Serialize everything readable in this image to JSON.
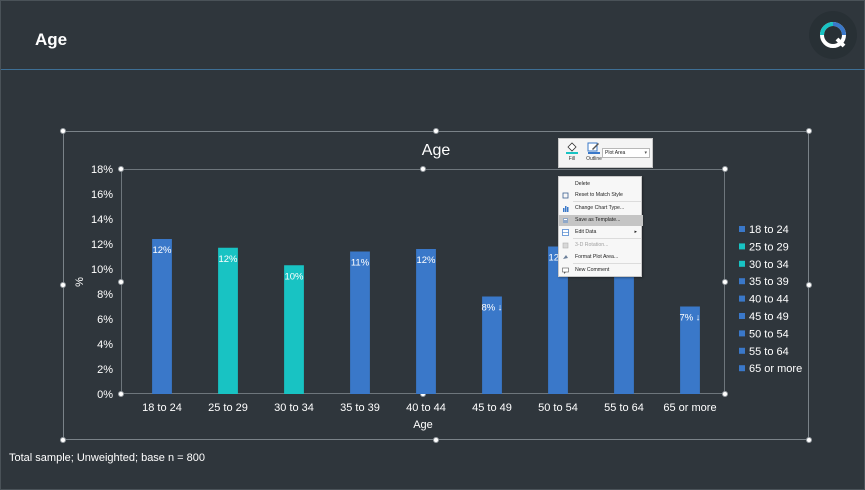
{
  "header": {
    "title": "Age",
    "logo_icon": "product-logo-icon"
  },
  "footnote": "Total sample; Unweighted; base n = 800",
  "chart_data": {
    "type": "bar",
    "title": "Age",
    "xlabel": "Age",
    "ylabel": "%",
    "ylim": [
      0,
      18
    ],
    "yticks": [
      "0%",
      "2%",
      "4%",
      "6%",
      "8%",
      "10%",
      "12%",
      "14%",
      "16%",
      "18%"
    ],
    "categories": [
      "18 to 24",
      "25 to 29",
      "30 to 34",
      "35 to 39",
      "40 to 44",
      "45 to 49",
      "50 to 54",
      "55 to 64",
      "65 or more"
    ],
    "values": [
      12.4,
      11.7,
      10.3,
      11.4,
      11.6,
      7.8,
      11.8,
      12.3,
      7.0
    ],
    "labels": [
      "12%",
      "12%",
      "10%",
      "11%",
      "12%",
      "8% ↓",
      "12%",
      "12%",
      "7% ↓"
    ],
    "colors": [
      "#3a78c9",
      "#18c3c3",
      "#18c3c3",
      "#3a78c9",
      "#3a78c9",
      "#3a78c9",
      "#3a78c9",
      "#3a78c9",
      "#3a78c9"
    ],
    "legend_position": "right",
    "legend": [
      {
        "name": "18 to 24",
        "color": "#3a78c9"
      },
      {
        "name": "25 to 29",
        "color": "#18c3c3"
      },
      {
        "name": "30 to 34",
        "color": "#18c3c3"
      },
      {
        "name": "35 to 39",
        "color": "#3a78c9"
      },
      {
        "name": "40 to 44",
        "color": "#3a78c9"
      },
      {
        "name": "45 to 49",
        "color": "#3a78c9"
      },
      {
        "name": "50 to 54",
        "color": "#3a78c9"
      },
      {
        "name": "55 to 64",
        "color": "#3a78c9"
      },
      {
        "name": "65 or more",
        "color": "#3a78c9"
      }
    ],
    "grid": false
  },
  "mini_toolbar": {
    "fill_label": "Fill",
    "outline_label": "Outline",
    "select_value": "Plot Area"
  },
  "context_menu": {
    "items": [
      {
        "label": "Delete",
        "icon": "",
        "disabled": false,
        "highlighted": false,
        "submenu": false
      },
      {
        "label": "Reset to Match Style",
        "icon": "reset-style-icon",
        "disabled": false,
        "highlighted": false,
        "submenu": false
      },
      {
        "label": "Change Chart Type...",
        "icon": "chart-type-icon",
        "disabled": false,
        "highlighted": false,
        "submenu": false
      },
      {
        "label": "Save as Template...",
        "icon": "save-template-icon",
        "disabled": false,
        "highlighted": true,
        "submenu": false
      },
      {
        "label": "Edit Data",
        "icon": "edit-data-icon",
        "disabled": false,
        "highlighted": false,
        "submenu": true
      },
      {
        "label": "3-D Rotation...",
        "icon": "rotation-icon",
        "disabled": true,
        "highlighted": false,
        "submenu": false
      },
      {
        "label": "Format Plot Area...",
        "icon": "format-area-icon",
        "disabled": false,
        "highlighted": false,
        "submenu": false
      },
      {
        "label": "New Comment",
        "icon": "comment-icon",
        "disabled": false,
        "highlighted": false,
        "submenu": false
      }
    ],
    "submenu_glyph": "▸"
  }
}
